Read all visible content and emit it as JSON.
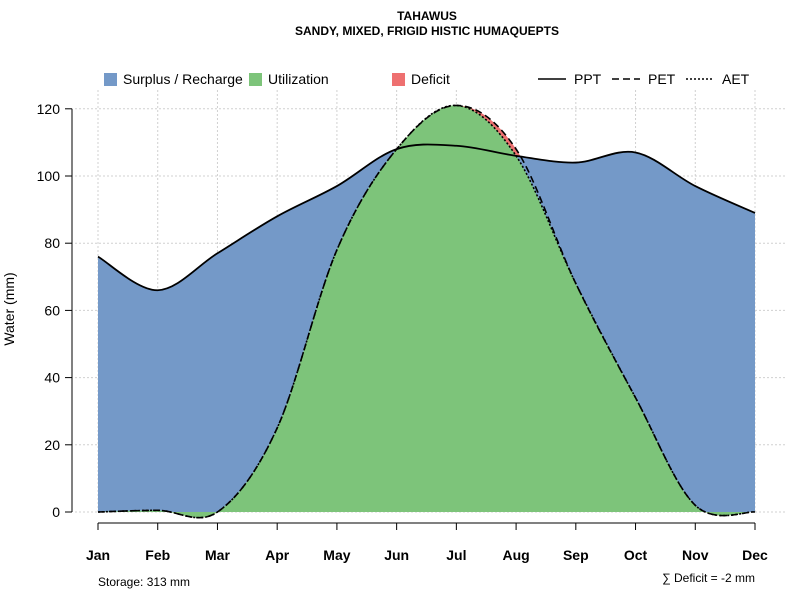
{
  "chart_data": {
    "type": "area",
    "title": "TAHAWUS",
    "subtitle": "SANDY, MIXED, FRIGID HISTIC HUMAQUEPTS",
    "xlabel": "",
    "ylabel": "Water (mm)",
    "ylim": [
      0,
      125
    ],
    "yticks": [
      0,
      20,
      40,
      60,
      80,
      100,
      120
    ],
    "categories": [
      "Jan",
      "Feb",
      "Mar",
      "Apr",
      "May",
      "Jun",
      "Jul",
      "Aug",
      "Sep",
      "Oct",
      "Nov",
      "Dec"
    ],
    "grid": true,
    "legend_position": "top",
    "series": [
      {
        "name": "PPT",
        "style": "solid",
        "values": [
          76,
          66,
          77,
          88,
          97,
          108,
          109,
          106,
          104,
          107,
          97,
          89
        ]
      },
      {
        "name": "PET",
        "style": "dashed",
        "values": [
          0,
          0.5,
          0,
          25,
          78,
          108,
          121,
          108,
          68,
          34,
          2,
          0
        ]
      },
      {
        "name": "AET",
        "style": "dotted",
        "values": [
          0,
          0.5,
          0,
          25,
          78,
          108,
          121,
          106,
          68,
          34,
          2,
          0
        ]
      }
    ],
    "areas": [
      {
        "name": "Surplus / Recharge",
        "color": "#7499C8"
      },
      {
        "name": "Utilization",
        "color": "#7DC47A"
      },
      {
        "name": "Deficit",
        "color": "#EE7070"
      }
    ],
    "annotations": {
      "storage": "Storage: 313 mm",
      "deficit": "∑ Deficit = -2 mm"
    }
  }
}
